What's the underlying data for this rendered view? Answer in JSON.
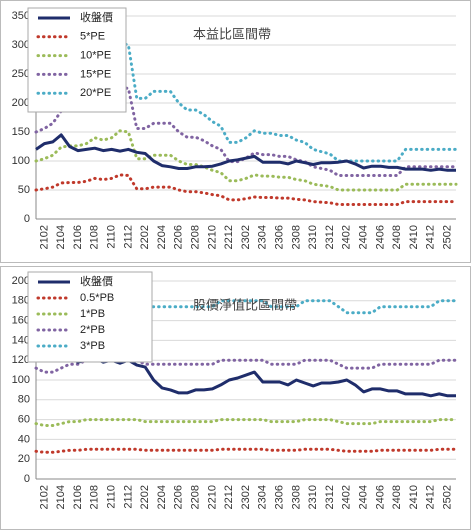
{
  "chart_data": [
    {
      "type": "line",
      "title": "本益比區間帶",
      "categories": [
        null,
        "2102",
        null,
        "2104",
        null,
        "2106",
        null,
        "2108",
        null,
        "2110",
        null,
        "2112",
        null,
        "2202",
        null,
        "2204",
        null,
        "2206",
        null,
        "2208",
        null,
        "2210",
        null,
        "2212",
        null,
        "2302",
        null,
        "2304",
        null,
        "2306",
        null,
        "2308",
        null,
        "2310",
        null,
        "2312",
        null,
        "2402",
        null,
        "2404",
        null,
        "2406",
        null,
        "2408",
        null,
        "2410",
        null,
        "2412",
        null,
        "2502",
        null
      ],
      "ylim": [
        0,
        350
      ],
      "yticks": [
        0,
        50,
        100,
        150,
        200,
        250,
        300,
        350
      ],
      "grid": true,
      "series": [
        {
          "name": "收盤價",
          "color": "#1f2d6b",
          "values": [
            120,
            130,
            133,
            145,
            125,
            118,
            120,
            122,
            118,
            120,
            117,
            120,
            115,
            113,
            100,
            92,
            90,
            87,
            87,
            90,
            90,
            91,
            95,
            100,
            102,
            105,
            108,
            98,
            98,
            98,
            95,
            100,
            97,
            94,
            97,
            97,
            98,
            100,
            95,
            88,
            91,
            91,
            89,
            89,
            86,
            86,
            86,
            84,
            86,
            84,
            84
          ]
        },
        {
          "name": "5*PE",
          "color": "#c0392b",
          "values": [
            50,
            52,
            55,
            62,
            63,
            63,
            65,
            70,
            68,
            70,
            76,
            75,
            52,
            52,
            55,
            55,
            55,
            50,
            47,
            47,
            45,
            42,
            40,
            33,
            33,
            35,
            38,
            37,
            37,
            36,
            36,
            34,
            33,
            30,
            29,
            28,
            25,
            25,
            25,
            25,
            25,
            25,
            25,
            25,
            30,
            30,
            30,
            30,
            30,
            30,
            30
          ]
        },
        {
          "name": "10*PE",
          "color": "#9bbb59",
          "values": [
            100,
            104,
            110,
            124,
            126,
            126,
            130,
            140,
            136,
            140,
            152,
            150,
            104,
            104,
            110,
            110,
            110,
            100,
            94,
            94,
            90,
            84,
            80,
            66,
            66,
            70,
            76,
            74,
            74,
            72,
            72,
            68,
            66,
            60,
            58,
            56,
            50,
            50,
            50,
            50,
            50,
            50,
            50,
            50,
            60,
            60,
            60,
            60,
            60,
            60,
            60
          ]
        },
        {
          "name": "15*PE",
          "color": "#8064a2",
          "values": [
            150,
            156,
            165,
            186,
            189,
            189,
            195,
            210,
            204,
            210,
            228,
            225,
            156,
            156,
            165,
            165,
            165,
            150,
            141,
            141,
            135,
            126,
            120,
            99,
            99,
            105,
            114,
            111,
            111,
            108,
            108,
            102,
            99,
            90,
            87,
            84,
            75,
            75,
            75,
            75,
            75,
            75,
            75,
            75,
            90,
            90,
            90,
            90,
            90,
            90,
            90
          ]
        },
        {
          "name": "20*PE",
          "color": "#4bacc6",
          "values": [
            200,
            208,
            220,
            248,
            252,
            252,
            260,
            280,
            272,
            280,
            304,
            300,
            208,
            208,
            220,
            220,
            220,
            200,
            188,
            188,
            180,
            168,
            160,
            132,
            132,
            140,
            152,
            148,
            148,
            144,
            144,
            136,
            132,
            120,
            116,
            112,
            100,
            100,
            100,
            100,
            100,
            100,
            100,
            100,
            120,
            120,
            120,
            120,
            120,
            120,
            120
          ]
        }
      ]
    },
    {
      "type": "line",
      "title": "股價淨值比區間帶",
      "categories": [
        null,
        "2102",
        null,
        "2104",
        null,
        "2106",
        null,
        "2108",
        null,
        "2110",
        null,
        "2112",
        null,
        "2202",
        null,
        "2204",
        null,
        "2206",
        null,
        "2208",
        null,
        "2210",
        null,
        "2212",
        null,
        "2302",
        null,
        "2304",
        null,
        "2306",
        null,
        "2308",
        null,
        "2310",
        null,
        "2312",
        null,
        "2402",
        null,
        "2404",
        null,
        "2406",
        null,
        "2408",
        null,
        "2410",
        null,
        "2412",
        null,
        "2502",
        null
      ],
      "ylim": [
        0,
        200
      ],
      "yticks": [
        0,
        20,
        40,
        60,
        80,
        100,
        120,
        140,
        160,
        180,
        200
      ],
      "grid": true,
      "series": [
        {
          "name": "收盤價",
          "color": "#1f2d6b",
          "values": [
            120,
            130,
            133,
            145,
            125,
            118,
            120,
            122,
            118,
            120,
            117,
            120,
            115,
            113,
            100,
            92,
            90,
            87,
            87,
            90,
            90,
            91,
            95,
            100,
            102,
            105,
            108,
            98,
            98,
            98,
            95,
            100,
            97,
            94,
            97,
            97,
            98,
            100,
            95,
            88,
            91,
            91,
            89,
            89,
            86,
            86,
            86,
            84,
            86,
            84,
            84
          ]
        },
        {
          "name": "0.5*PB",
          "color": "#c0392b",
          "values": [
            28,
            27,
            27,
            28,
            29,
            29,
            30,
            30,
            30,
            30,
            30,
            30,
            30,
            29,
            29,
            29,
            29,
            29,
            29,
            29,
            29,
            29,
            30,
            30,
            30,
            30,
            30,
            30,
            29,
            29,
            29,
            29,
            30,
            30,
            30,
            30,
            29,
            28,
            28,
            28,
            28,
            29,
            29,
            29,
            29,
            29,
            29,
            29,
            30,
            30,
            30
          ]
        },
        {
          "name": "1*PB",
          "color": "#9bbb59",
          "values": [
            56,
            54,
            54,
            56,
            58,
            58,
            60,
            60,
            60,
            60,
            60,
            60,
            60,
            58,
            58,
            58,
            58,
            58,
            58,
            58,
            58,
            58,
            60,
            60,
            60,
            60,
            60,
            60,
            58,
            58,
            58,
            58,
            60,
            60,
            60,
            60,
            58,
            56,
            56,
            56,
            56,
            58,
            58,
            58,
            58,
            58,
            58,
            58,
            60,
            60,
            60
          ]
        },
        {
          "name": "2*PB",
          "color": "#8064a2",
          "values": [
            112,
            108,
            108,
            112,
            116,
            116,
            120,
            120,
            120,
            120,
            120,
            120,
            120,
            116,
            116,
            116,
            116,
            116,
            116,
            116,
            116,
            116,
            120,
            120,
            120,
            120,
            120,
            120,
            116,
            116,
            116,
            116,
            120,
            120,
            120,
            120,
            116,
            112,
            112,
            112,
            112,
            116,
            116,
            116,
            116,
            116,
            116,
            116,
            120,
            120,
            120
          ]
        },
        {
          "name": "3*PB",
          "color": "#4bacc6",
          "values": [
            168,
            162,
            162,
            168,
            174,
            174,
            180,
            180,
            180,
            180,
            180,
            180,
            180,
            174,
            174,
            174,
            174,
            174,
            174,
            174,
            174,
            174,
            180,
            180,
            180,
            180,
            180,
            180,
            174,
            174,
            174,
            174,
            180,
            180,
            180,
            180,
            174,
            168,
            168,
            168,
            168,
            174,
            174,
            174,
            174,
            174,
            174,
            174,
            180,
            180,
            180
          ]
        }
      ]
    }
  ]
}
